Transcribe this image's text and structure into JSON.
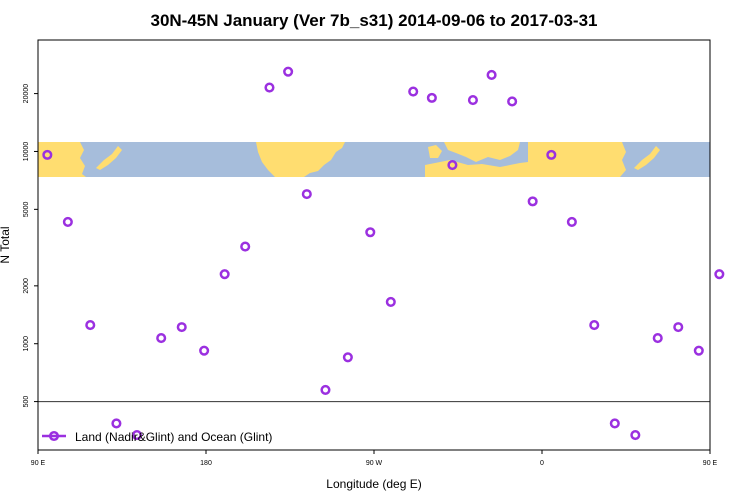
{
  "chart_data": {
    "type": "scatter",
    "title": "30N-45N January (Ver 7b_s31)   2014-09-06 to 2017-03-31",
    "xlabel": "Longitude (deg E)",
    "ylabel": "N Total",
    "x_scale": "linear",
    "y_scale": "log",
    "xlim": [
      90,
      450
    ],
    "ylim": [
      280,
      38000
    ],
    "x_ticks": [
      {
        "value": 90,
        "label": "90 E"
      },
      {
        "value": 180,
        "label": "180"
      },
      {
        "value": 270,
        "label": "90 W"
      },
      {
        "value": 360,
        "label": "0"
      },
      {
        "value": 450,
        "label": "90 E"
      },
      {
        "value": 540,
        "label": "180"
      }
    ],
    "y_ticks": [
      {
        "value": 500,
        "label": "500"
      },
      {
        "value": 1000,
        "label": "1000"
      },
      {
        "value": 2000,
        "label": "2000"
      },
      {
        "value": 5000,
        "label": "5000"
      },
      {
        "value": 10000,
        "label": "10000"
      },
      {
        "value": 20000,
        "label": "20000"
      }
    ],
    "reference_line": 500,
    "map_strip": {
      "lat_range": "30N-45N",
      "ocean_color": "#a6bddb",
      "land_color": "#ffdd70"
    },
    "series": [
      {
        "name": "Land (Nadir&Glint) and Ocean (Glint)",
        "color": "#9b30e0",
        "marker": "open-circle",
        "x": [
          95,
          106,
          118,
          132,
          143,
          156,
          167,
          179,
          190,
          201,
          214,
          224,
          234,
          244,
          256,
          268,
          279,
          291,
          301,
          312,
          323,
          333,
          344,
          355,
          365,
          376,
          388,
          399,
          410,
          422,
          433,
          444,
          455
        ],
        "y": [
          9600,
          4300,
          1250,
          385,
          335,
          1070,
          1220,
          920,
          2300,
          3200,
          21500,
          26000,
          6000,
          575,
          850,
          3800,
          1650,
          20500,
          19000,
          8500,
          18500,
          25000,
          18200,
          5500,
          9600,
          4300,
          1250,
          385,
          335,
          1070,
          1220,
          920,
          2300
        ]
      }
    ],
    "legend": {
      "position": "bottom-left"
    }
  }
}
